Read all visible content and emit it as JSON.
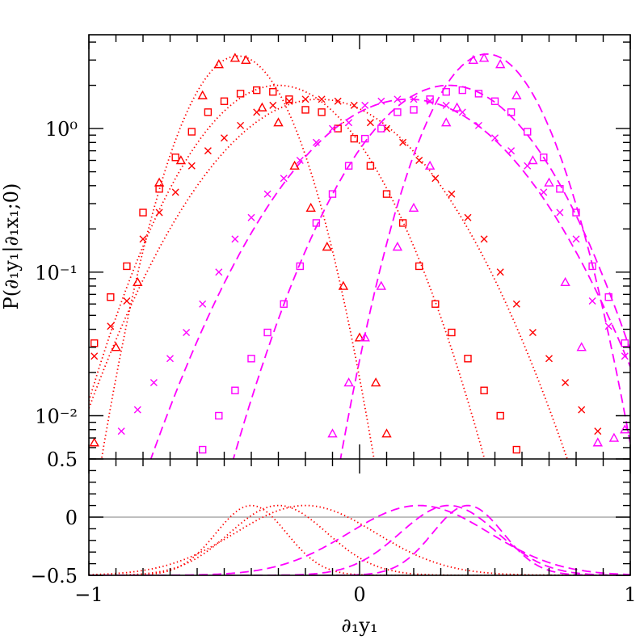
{
  "chart_data": {
    "type": "line",
    "xlabel": "∂₁y₁",
    "ylabel": "P(∂₁y₁|∂₁x₁;0)",
    "xlim": [
      -1,
      1
    ],
    "x_ticks": [
      "−1",
      "0",
      "1"
    ],
    "main_panel": {
      "yscale": "log",
      "ylim": [
        0.005,
        4.5
      ],
      "y_ticks": [
        "10⁰",
        "10⁻¹",
        "10⁻²"
      ],
      "y_bottom_label": "0.5",
      "series": [
        {
          "color": "#ff0000",
          "marker": "triangle",
          "x": [
            -0.98,
            -0.9,
            -0.82,
            -0.74,
            -0.66,
            -0.58,
            -0.52,
            -0.46,
            -0.42,
            -0.36,
            -0.3,
            -0.24,
            -0.18,
            -0.12,
            -0.06,
            0.0,
            0.06,
            0.1
          ],
          "y": [
            0.0065,
            0.03,
            0.085,
            0.42,
            0.6,
            1.7,
            2.8,
            3.1,
            3.0,
            1.4,
            1.1,
            0.55,
            0.28,
            0.15,
            0.08,
            0.035,
            0.017,
            0.0075
          ]
        },
        {
          "color": "#ff0000",
          "marker": "square",
          "x": [
            -0.98,
            -0.92,
            -0.86,
            -0.8,
            -0.74,
            -0.68,
            -0.62,
            -0.56,
            -0.5,
            -0.44,
            -0.38,
            -0.32,
            -0.26,
            -0.2,
            -0.14,
            -0.08,
            -0.02,
            0.04,
            0.1,
            0.16,
            0.22,
            0.28,
            0.34,
            0.4,
            0.46,
            0.52,
            0.58
          ],
          "y": [
            0.032,
            0.067,
            0.11,
            0.26,
            0.38,
            0.63,
            0.95,
            1.3,
            1.55,
            1.75,
            1.85,
            1.8,
            1.6,
            1.35,
            1.3,
            1.0,
            0.85,
            0.55,
            0.35,
            0.22,
            0.11,
            0.06,
            0.038,
            0.025,
            0.015,
            0.01,
            0.0058
          ]
        },
        {
          "color": "#ff0000",
          "marker": "cross",
          "x": [
            -0.98,
            -0.92,
            -0.86,
            -0.8,
            -0.74,
            -0.68,
            -0.62,
            -0.56,
            -0.5,
            -0.44,
            -0.38,
            -0.32,
            -0.26,
            -0.2,
            -0.14,
            -0.08,
            -0.02,
            0.04,
            0.1,
            0.16,
            0.22,
            0.28,
            0.34,
            0.4,
            0.46,
            0.52,
            0.58,
            0.64,
            0.7,
            0.76,
            0.82,
            0.88
          ],
          "y": [
            0.026,
            0.042,
            0.063,
            0.17,
            0.26,
            0.36,
            0.55,
            0.7,
            0.86,
            1.05,
            1.3,
            1.45,
            1.55,
            1.6,
            1.6,
            1.55,
            1.45,
            1.1,
            1.0,
            0.8,
            0.6,
            0.45,
            0.35,
            0.24,
            0.17,
            0.1,
            0.06,
            0.038,
            0.025,
            0.017,
            0.011,
            0.0078
          ]
        },
        {
          "color": "#ff00ff",
          "marker": "triangle",
          "x": [
            -0.1,
            -0.04,
            0.02,
            0.08,
            0.14,
            0.2,
            0.26,
            0.32,
            0.36,
            0.42,
            0.46,
            0.52,
            0.58,
            0.64,
            0.7,
            0.76,
            0.82,
            0.88,
            0.94,
            0.98
          ],
          "y": [
            0.0075,
            0.017,
            0.035,
            0.08,
            0.15,
            0.28,
            0.55,
            1.1,
            1.4,
            3.0,
            3.1,
            2.8,
            1.7,
            0.6,
            0.42,
            0.085,
            0.03,
            0.0065,
            0.007,
            0.008
          ]
        },
        {
          "color": "#ff00ff",
          "marker": "square",
          "x": [
            -0.58,
            -0.52,
            -0.46,
            -0.4,
            -0.34,
            -0.28,
            -0.22,
            -0.16,
            -0.1,
            -0.04,
            0.02,
            0.08,
            0.14,
            0.2,
            0.26,
            0.32,
            0.38,
            0.44,
            0.5,
            0.56,
            0.62,
            0.68,
            0.74,
            0.8,
            0.86,
            0.92,
            0.98
          ],
          "y": [
            0.0058,
            0.01,
            0.015,
            0.025,
            0.038,
            0.06,
            0.11,
            0.22,
            0.35,
            0.55,
            0.85,
            1.0,
            1.3,
            1.35,
            1.6,
            1.8,
            1.85,
            1.75,
            1.55,
            1.3,
            0.95,
            0.63,
            0.38,
            0.26,
            0.11,
            0.067,
            0.032
          ]
        },
        {
          "color": "#ff00ff",
          "marker": "cross",
          "x": [
            -0.88,
            -0.82,
            -0.76,
            -0.7,
            -0.64,
            -0.58,
            -0.52,
            -0.46,
            -0.4,
            -0.34,
            -0.28,
            -0.22,
            -0.16,
            -0.1,
            -0.04,
            0.02,
            0.08,
            0.14,
            0.2,
            0.26,
            0.32,
            0.38,
            0.44,
            0.5,
            0.56,
            0.62,
            0.68,
            0.74,
            0.8,
            0.86,
            0.92,
            0.98
          ],
          "y": [
            0.0078,
            0.011,
            0.017,
            0.025,
            0.038,
            0.06,
            0.1,
            0.17,
            0.24,
            0.35,
            0.45,
            0.6,
            0.8,
            1.0,
            1.1,
            1.45,
            1.55,
            1.6,
            1.6,
            1.55,
            1.45,
            1.3,
            1.05,
            0.86,
            0.7,
            0.55,
            0.36,
            0.26,
            0.17,
            0.063,
            0.042,
            0.026
          ]
        }
      ],
      "curves": [
        {
          "color": "#ff0000",
          "style": "dotted",
          "mu": -0.45,
          "sigma": 0.14,
          "A": 3.2
        },
        {
          "color": "#ff0000",
          "style": "dotted",
          "mu": -0.3,
          "sigma": 0.22,
          "A": 2.0
        },
        {
          "color": "#ff0000",
          "style": "dotted",
          "mu": -0.15,
          "sigma": 0.27,
          "A": 1.6
        },
        {
          "color": "#ff00ff",
          "style": "dashed",
          "mu": 0.47,
          "sigma": 0.15,
          "A": 3.3
        },
        {
          "color": "#ff00ff",
          "style": "dashed",
          "mu": 0.33,
          "sigma": 0.23,
          "A": 2.0
        },
        {
          "color": "#ff00ff",
          "style": "dashed",
          "mu": 0.18,
          "sigma": 0.28,
          "A": 1.6
        }
      ]
    },
    "residual_panel": {
      "ylim": [
        -0.5,
        0.5
      ],
      "y_ticks": [
        "0",
        "−0.5"
      ],
      "zero_line": true,
      "curves": [
        {
          "color": "#ff0000",
          "style": "dotted",
          "mu": -0.4,
          "sigma": 0.13,
          "A": 0.6
        },
        {
          "color": "#ff0000",
          "style": "dotted",
          "mu": -0.3,
          "sigma": 0.18,
          "A": 0.6
        },
        {
          "color": "#ff0000",
          "style": "dotted",
          "mu": -0.2,
          "sigma": 0.26,
          "A": 0.6
        },
        {
          "color": "#ff00ff",
          "style": "dashed",
          "mu": 0.4,
          "sigma": 0.13,
          "A": 0.6
        },
        {
          "color": "#ff00ff",
          "style": "dashed",
          "mu": 0.33,
          "sigma": 0.18,
          "A": 0.6
        },
        {
          "color": "#ff00ff",
          "style": "dashed",
          "mu": 0.22,
          "sigma": 0.26,
          "A": 0.6
        }
      ]
    }
  }
}
